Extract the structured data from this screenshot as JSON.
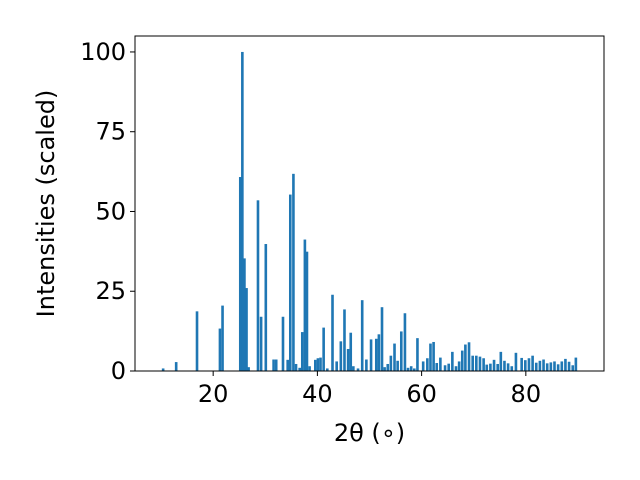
{
  "chart_data": {
    "type": "bar",
    "title": "",
    "xlabel": "2θ (∘)",
    "ylabel": "Intensities (scaled)",
    "xlim": [
      5,
      95
    ],
    "ylim": [
      0,
      105
    ],
    "xticks": [
      "20",
      "40",
      "60",
      "80"
    ],
    "xtick_values": [
      20,
      40,
      60,
      80
    ],
    "yticks": [
      "0",
      "25",
      "50",
      "75",
      "100"
    ],
    "ytick_values": [
      0,
      25,
      50,
      75,
      100
    ],
    "grid": false,
    "legend": "none",
    "bar_width": 0.5,
    "color": "#1f77b4",
    "x": [
      10.4,
      12.9,
      16.9,
      21.3,
      21.8,
      25.2,
      25.6,
      26.0,
      26.4,
      26.8,
      28.6,
      29.2,
      30.1,
      31.6,
      32.1,
      33.4,
      34.3,
      34.8,
      35.4,
      35.9,
      36.6,
      37.1,
      37.6,
      38.0,
      38.5,
      39.6,
      40.1,
      40.6,
      41.2,
      41.9,
      42.9,
      43.7,
      44.5,
      45.2,
      45.9,
      46.4,
      46.9,
      47.8,
      48.6,
      49.4,
      50.3,
      51.3,
      51.8,
      52.4,
      52.9,
      53.5,
      54.1,
      54.8,
      55.4,
      56.1,
      56.8,
      57.4,
      58.0,
      58.6,
      59.2,
      60.3,
      61.1,
      61.7,
      62.3,
      62.9,
      63.6,
      64.5,
      65.2,
      65.9,
      66.6,
      67.2,
      67.8,
      68.4,
      69.1,
      69.8,
      70.5,
      71.2,
      71.9,
      72.5,
      73.2,
      73.9,
      74.6,
      75.2,
      75.9,
      76.6,
      77.3,
      78.1,
      79.2,
      79.9,
      80.6,
      81.3,
      82.0,
      82.7,
      83.4,
      84.1,
      84.8,
      85.5,
      86.2,
      86.9,
      87.6,
      88.3,
      89.0,
      89.6
    ],
    "values": [
      0.8,
      2.8,
      18.7,
      13.3,
      20.5,
      60.8,
      100.0,
      35.3,
      26.0,
      1.2,
      53.5,
      17.0,
      39.8,
      3.6,
      3.6,
      17.0,
      3.5,
      55.3,
      61.8,
      2.2,
      1.0,
      12.2,
      41.2,
      37.4,
      1.5,
      3.5,
      4.0,
      4.2,
      13.6,
      0.8,
      23.9,
      3.0,
      9.3,
      19.3,
      6.9,
      12.0,
      1.5,
      0.8,
      22.2,
      3.6,
      9.9,
      10.1,
      11.5,
      20.0,
      1.2,
      2.2,
      4.8,
      8.6,
      3.2,
      12.4,
      18.1,
      1.0,
      1.5,
      0.8,
      10.3,
      3.0,
      4.0,
      8.6,
      9.1,
      2.5,
      4.2,
      1.8,
      2.3,
      6.0,
      1.5,
      3.0,
      6.4,
      8.3,
      9.0,
      4.8,
      4.8,
      4.5,
      4.0,
      2.0,
      2.3,
      3.5,
      2.2,
      6.0,
      3.2,
      2.4,
      1.5,
      5.7,
      4.1,
      3.4,
      4.0,
      4.8,
      2.6,
      3.2,
      3.6,
      2.4,
      2.7,
      3.0,
      2.1,
      3.0,
      3.8,
      2.9,
      1.8,
      4.2
    ]
  }
}
